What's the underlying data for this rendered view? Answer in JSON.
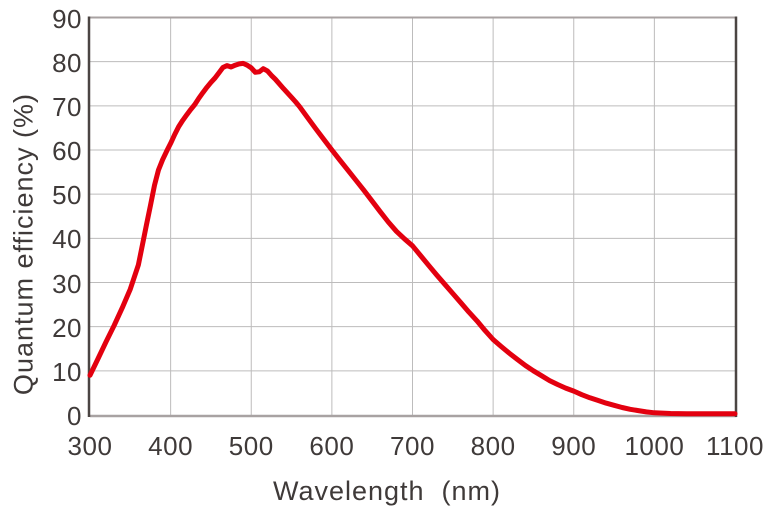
{
  "chart_data": {
    "type": "line",
    "title": "",
    "xlabel": "Wavelength  (nm)",
    "ylabel": "Quantum efficiency (%)",
    "xlim": [
      300,
      1100
    ],
    "ylim": [
      0,
      90
    ],
    "x_ticks": [
      300,
      400,
      500,
      600,
      700,
      800,
      900,
      1000,
      1100
    ],
    "y_ticks": [
      0,
      10,
      20,
      30,
      40,
      50,
      60,
      70,
      80,
      90
    ],
    "grid": true,
    "legend_position": "none",
    "series": [
      {
        "name": "Quantum efficiency",
        "color": "#e3000f",
        "points": [
          [
            300,
            9.0
          ],
          [
            310,
            12.8
          ],
          [
            320,
            16.6
          ],
          [
            330,
            20.3
          ],
          [
            340,
            24.3
          ],
          [
            350,
            28.5
          ],
          [
            360,
            34.0
          ],
          [
            365,
            38.5
          ],
          [
            370,
            43.0
          ],
          [
            375,
            47.5
          ],
          [
            380,
            52.0
          ],
          [
            385,
            55.5
          ],
          [
            390,
            57.8
          ],
          [
            395,
            59.7
          ],
          [
            400,
            61.5
          ],
          [
            405,
            63.5
          ],
          [
            410,
            65.3
          ],
          [
            415,
            66.7
          ],
          [
            420,
            68.0
          ],
          [
            425,
            69.2
          ],
          [
            430,
            70.3
          ],
          [
            435,
            71.7
          ],
          [
            440,
            73.0
          ],
          [
            445,
            74.2
          ],
          [
            450,
            75.3
          ],
          [
            455,
            76.3
          ],
          [
            460,
            77.5
          ],
          [
            465,
            78.7
          ],
          [
            470,
            79.1
          ],
          [
            475,
            78.8
          ],
          [
            480,
            79.2
          ],
          [
            485,
            79.5
          ],
          [
            490,
            79.6
          ],
          [
            495,
            79.2
          ],
          [
            500,
            78.6
          ],
          [
            505,
            77.6
          ],
          [
            510,
            77.7
          ],
          [
            515,
            78.4
          ],
          [
            520,
            77.9
          ],
          [
            525,
            76.9
          ],
          [
            530,
            76.0
          ],
          [
            540,
            73.9
          ],
          [
            550,
            71.9
          ],
          [
            555,
            70.9
          ],
          [
            560,
            69.8
          ],
          [
            570,
            67.3
          ],
          [
            580,
            64.8
          ],
          [
            590,
            62.4
          ],
          [
            600,
            60.0
          ],
          [
            610,
            57.7
          ],
          [
            620,
            55.4
          ],
          [
            630,
            53.1
          ],
          [
            640,
            50.8
          ],
          [
            650,
            48.4
          ],
          [
            660,
            46.0
          ],
          [
            670,
            43.7
          ],
          [
            680,
            41.6
          ],
          [
            690,
            39.9
          ],
          [
            700,
            38.3
          ],
          [
            710,
            36.1
          ],
          [
            720,
            33.9
          ],
          [
            730,
            31.7
          ],
          [
            740,
            29.6
          ],
          [
            750,
            27.5
          ],
          [
            760,
            25.4
          ],
          [
            770,
            23.3
          ],
          [
            780,
            21.3
          ],
          [
            790,
            19.1
          ],
          [
            800,
            17.1
          ],
          [
            810,
            15.5
          ],
          [
            820,
            14.0
          ],
          [
            830,
            12.6
          ],
          [
            840,
            11.2
          ],
          [
            850,
            10.0
          ],
          [
            860,
            8.9
          ],
          [
            870,
            7.8
          ],
          [
            880,
            6.9
          ],
          [
            890,
            6.1
          ],
          [
            900,
            5.4
          ],
          [
            910,
            4.6
          ],
          [
            920,
            3.9
          ],
          [
            930,
            3.3
          ],
          [
            940,
            2.7
          ],
          [
            950,
            2.2
          ],
          [
            960,
            1.7
          ],
          [
            970,
            1.3
          ],
          [
            980,
            1.0
          ],
          [
            990,
            0.7
          ],
          [
            1000,
            0.5
          ],
          [
            1020,
            0.35
          ],
          [
            1040,
            0.3
          ],
          [
            1060,
            0.3
          ],
          [
            1080,
            0.3
          ],
          [
            1100,
            0.3
          ]
        ]
      }
    ]
  },
  "colors": {
    "curve": "#e3000f",
    "grid": "#bdbcbc",
    "frame_dark": "#4b4543",
    "frame_light": "#a8a2a2",
    "text": "#3f3a39",
    "background": "#ffffff"
  }
}
